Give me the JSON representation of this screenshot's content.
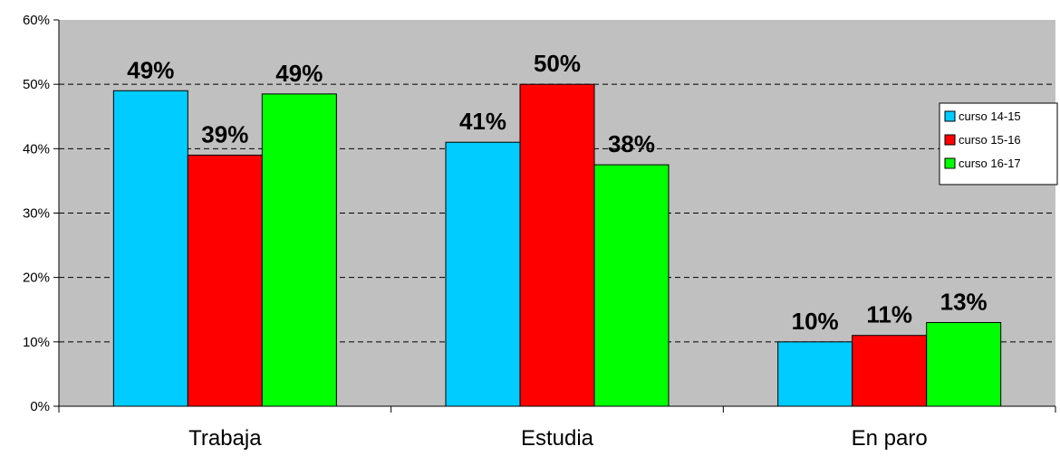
{
  "chart_data": {
    "type": "bar",
    "categories": [
      "Trabaja",
      "Estudia",
      "En paro"
    ],
    "series": [
      {
        "name": "curso 14-15",
        "color": "#00CCFF",
        "values": [
          49,
          41,
          10
        ],
        "labels": [
          "49%",
          "41%",
          "10%"
        ]
      },
      {
        "name": "curso 15-16",
        "color": "#FF0000",
        "values": [
          39,
          50,
          11
        ],
        "labels": [
          "39%",
          "50%",
          "11%"
        ]
      },
      {
        "name": "curso 16-17",
        "color": "#00FF00",
        "values": [
          48.5,
          37.5,
          13
        ],
        "labels": [
          "49%",
          "38%",
          "13%"
        ]
      }
    ],
    "ylim": [
      0,
      60
    ],
    "yticks": [
      0,
      10,
      20,
      30,
      40,
      50,
      60
    ],
    "ytick_labels": [
      "0%",
      "10%",
      "20%",
      "30%",
      "40%",
      "50%",
      "60%"
    ],
    "grid": "dashed horizontal",
    "plot_background": "#C0C0C0",
    "legend_position": "right"
  }
}
